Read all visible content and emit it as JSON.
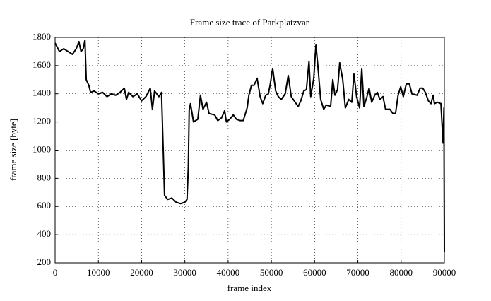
{
  "chart_data": {
    "type": "line",
    "title": "Frame size trace of Parkplatzvar",
    "x_label": "frame index",
    "y_label": "frame size [byte]",
    "x": [
      0,
      1000,
      2000,
      3000,
      4000,
      4900,
      5500,
      6000,
      6500,
      6900,
      7200,
      7800,
      8200,
      9000,
      10000,
      11000,
      12000,
      13000,
      14000,
      15000,
      16000,
      16500,
      17000,
      18000,
      19000,
      20000,
      21000,
      22000,
      22500,
      23000,
      24000,
      24600,
      25000,
      25300,
      26000,
      27000,
      28000,
      29000,
      30000,
      30500,
      30800,
      31000,
      31300,
      32000,
      33000,
      33600,
      34200,
      35000,
      35600,
      36900,
      37600,
      38500,
      39200,
      39600,
      40400,
      41200,
      41900,
      42800,
      43500,
      44400,
      44800,
      45400,
      46000,
      46700,
      47400,
      48000,
      48700,
      49300,
      49700,
      50300,
      51000,
      51600,
      52300,
      53200,
      53900,
      54600,
      55500,
      56200,
      56800,
      57500,
      58100,
      58700,
      59100,
      59800,
      60300,
      60800,
      61400,
      62100,
      62700,
      63700,
      64200,
      64700,
      65300,
      65800,
      66500,
      67100,
      67900,
      68600,
      69100,
      69700,
      70400,
      70900,
      71400,
      72100,
      72600,
      73200,
      73900,
      74500,
      75100,
      75800,
      76400,
      77400,
      78100,
      78700,
      79300,
      79900,
      80500,
      81200,
      81900,
      82500,
      83700,
      84400,
      85000,
      85600,
      86300,
      86900,
      87400,
      87700,
      88400,
      89200,
      89700,
      89900,
      90000
    ],
    "series": [
      {
        "name": "Parkplatzvar",
        "color": "#000000",
        "values": [
          1760,
          1700,
          1720,
          1700,
          1680,
          1720,
          1770,
          1700,
          1720,
          1780,
          1500,
          1460,
          1410,
          1420,
          1400,
          1410,
          1380,
          1400,
          1390,
          1410,
          1440,
          1360,
          1410,
          1380,
          1400,
          1350,
          1380,
          1440,
          1290,
          1420,
          1380,
          1410,
          1000,
          680,
          650,
          660,
          630,
          620,
          630,
          650,
          880,
          1280,
          1330,
          1200,
          1220,
          1390,
          1290,
          1340,
          1260,
          1250,
          1210,
          1230,
          1280,
          1200,
          1220,
          1250,
          1220,
          1210,
          1210,
          1300,
          1390,
          1460,
          1460,
          1510,
          1380,
          1330,
          1390,
          1400,
          1460,
          1580,
          1420,
          1380,
          1360,
          1400,
          1530,
          1380,
          1340,
          1310,
          1350,
          1420,
          1430,
          1630,
          1380,
          1510,
          1750,
          1580,
          1360,
          1290,
          1320,
          1310,
          1500,
          1390,
          1430,
          1620,
          1500,
          1300,
          1360,
          1340,
          1540,
          1380,
          1300,
          1580,
          1310,
          1380,
          1440,
          1340,
          1390,
          1410,
          1360,
          1380,
          1290,
          1290,
          1260,
          1260,
          1390,
          1450,
          1380,
          1470,
          1470,
          1400,
          1390,
          1440,
          1440,
          1410,
          1350,
          1330,
          1390,
          1330,
          1340,
          1330,
          1050,
          1300,
          280
        ]
      }
    ],
    "xlim": [
      0,
      90000
    ],
    "xticks": [
      0,
      10000,
      20000,
      30000,
      40000,
      50000,
      60000,
      70000,
      80000,
      90000
    ],
    "ylim": [
      200,
      1800
    ],
    "yticks": [
      200,
      400,
      600,
      800,
      1000,
      1200,
      1400,
      1600,
      1800
    ],
    "grid": true
  }
}
